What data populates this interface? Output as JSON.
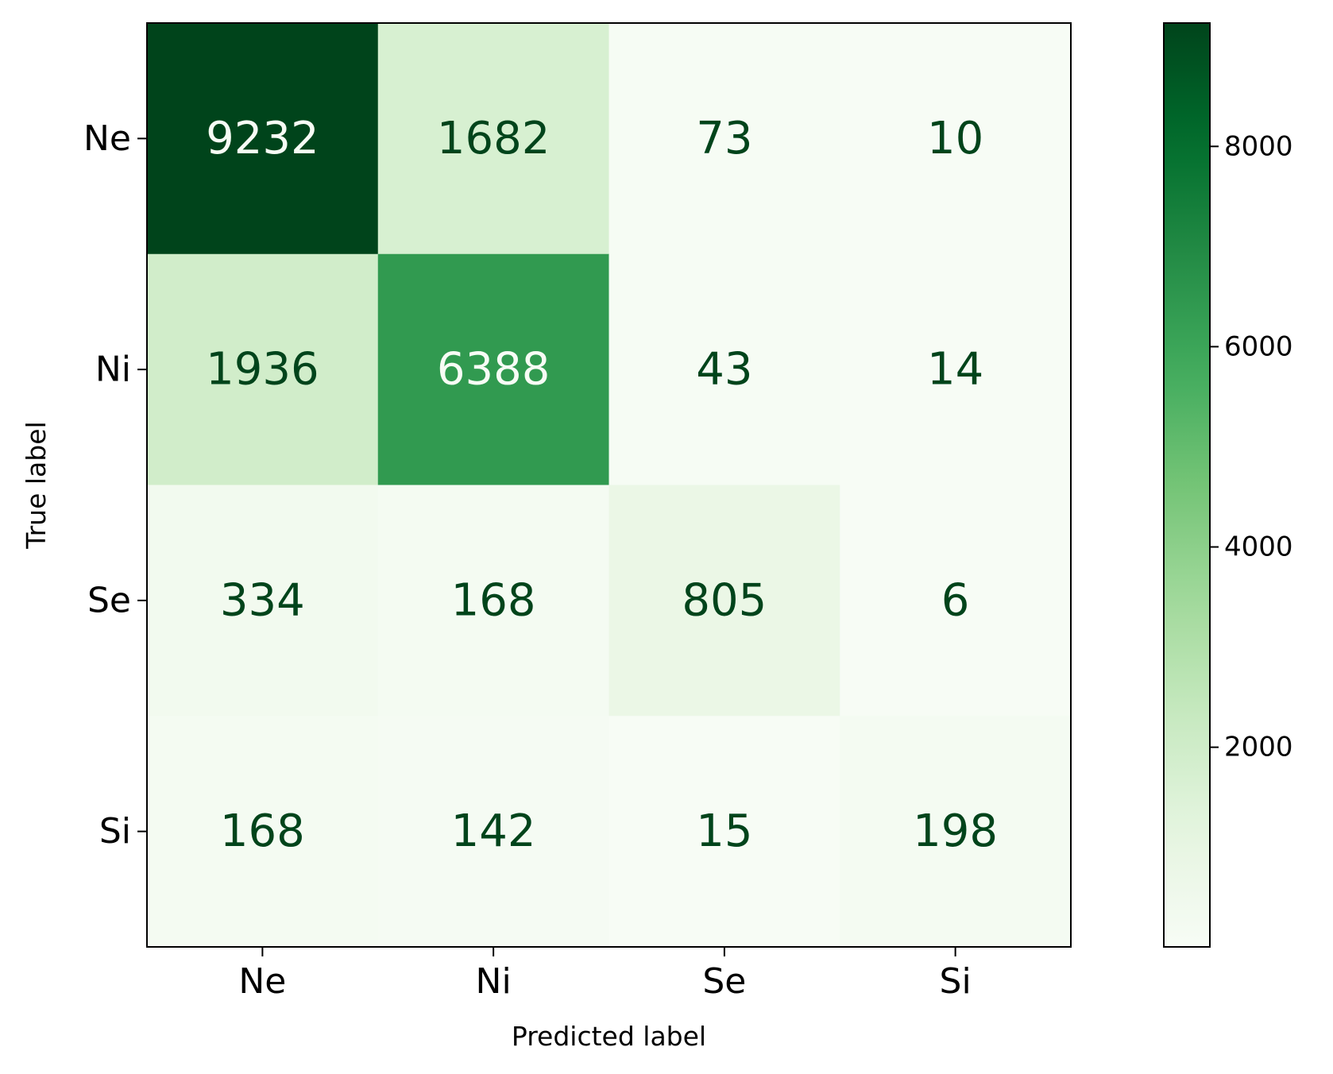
{
  "chart_data": {
    "type": "heatmap",
    "title": "",
    "xlabel": "Predicted label",
    "ylabel": "True label",
    "x_categories": [
      "Ne",
      "Ni",
      "Se",
      "Si"
    ],
    "y_categories": [
      "Ne",
      "Ni",
      "Se",
      "Si"
    ],
    "values": [
      [
        9232,
        1682,
        73,
        10
      ],
      [
        1936,
        6388,
        43,
        14
      ],
      [
        334,
        168,
        805,
        6
      ],
      [
        168,
        142,
        15,
        198
      ]
    ],
    "colormap": "Greens",
    "colorbar": {
      "range": [
        6,
        9232
      ],
      "ticks": [
        2000,
        4000,
        6000,
        8000
      ]
    },
    "text_color_dark": "#00441b",
    "text_color_light": "#f7fcf5",
    "grid": false
  }
}
